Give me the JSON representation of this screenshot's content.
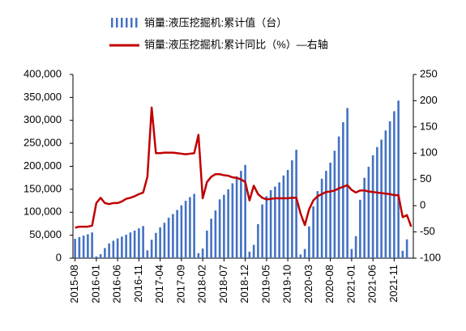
{
  "chart_data": {
    "type": "bar_line",
    "categories": [
      "2015-08",
      null,
      null,
      null,
      null,
      "2016-01",
      null,
      null,
      null,
      null,
      "2016-06",
      null,
      null,
      null,
      null,
      "2016-11",
      null,
      null,
      null,
      null,
      "2017-04",
      null,
      null,
      null,
      null,
      "2017-09",
      null,
      null,
      null,
      null,
      "2018-02",
      null,
      null,
      null,
      null,
      "2018-07",
      null,
      null,
      null,
      null,
      "2018-12",
      null,
      null,
      null,
      null,
      "2019-05",
      null,
      null,
      null,
      null,
      "2019-10",
      null,
      null,
      null,
      null,
      "2020-03",
      null,
      null,
      null,
      null,
      "2020-08",
      null,
      null,
      null,
      null,
      "2021-01",
      null,
      null,
      null,
      null,
      "2021-06",
      null,
      null,
      null,
      null,
      "2021-11",
      null,
      null,
      null,
      null
    ],
    "series": [
      {
        "name": "销量:液压挖掘机:累计值（台）",
        "type": "bar",
        "color": "#4472c4",
        "values": [
          42000,
          46000,
          49000,
          52000,
          56000,
          3700,
          8600,
          22000,
          32000,
          38000,
          43000,
          47000,
          51000,
          56000,
          60000,
          65000,
          70000,
          17000,
          40000,
          55000,
          67000,
          77000,
          88000,
          96000,
          105000,
          115000,
          125000,
          133000,
          140000,
          11000,
          21000,
          60000,
          86000,
          104000,
          128000,
          138000,
          150000,
          163000,
          178000,
          190000,
          203000,
          14000,
          29000,
          74000,
          117000,
          135000,
          148000,
          156000,
          165000,
          180000,
          192000,
          213000,
          236000,
          8000,
          20000,
          69000,
          113000,
          146000,
          173000,
          190000,
          208000,
          234000,
          265000,
          296000,
          327000,
          20000,
          48000,
          127000,
          175000,
          199000,
          224000,
          242000,
          258000,
          278000,
          298000,
          320000,
          343000,
          16000,
          41000,
          null
        ]
      },
      {
        "name": "销量:液压挖掘机:累计同比（%）—右轴",
        "type": "line",
        "axis": "y2",
        "color": "#c00000",
        "values": [
          -42,
          -40,
          -40,
          -40,
          -38,
          5,
          15,
          5,
          3,
          5,
          5,
          8,
          13,
          15,
          18,
          22,
          25,
          55,
          187,
          100,
          100,
          101,
          101,
          101,
          100,
          99,
          98,
          99,
          100,
          135,
          14,
          45,
          55,
          60,
          60,
          58,
          57,
          54,
          53,
          50,
          45,
          10,
          38,
          22,
          15,
          12,
          13,
          14,
          14,
          14,
          14,
          15,
          15,
          -15,
          -37,
          -7,
          10,
          18,
          22,
          26,
          27,
          29,
          33,
          36,
          39,
          30,
          25,
          29,
          29,
          27,
          26,
          25,
          24,
          23,
          22,
          20,
          20,
          -22,
          -18,
          -40
        ]
      }
    ],
    "ylim": [
      0,
      400000
    ],
    "yticks": [
      0,
      {
        "value": 50000,
        "label": "50,000"
      },
      {
        "value": 100000,
        "label": "100,000"
      },
      {
        "value": 150000,
        "label": "150,000"
      },
      {
        "value": 200000,
        "label": "200,000"
      },
      {
        "value": 250000,
        "label": "250,000"
      },
      {
        "value": 300000,
        "label": "300,000"
      },
      {
        "value": 350000,
        "label": "350,000"
      },
      {
        "value": 400000,
        "label": "400,000"
      }
    ],
    "y2lim": [
      -100,
      250
    ],
    "y2ticks": [
      -100,
      -50,
      0,
      50,
      100,
      150,
      200,
      250
    ],
    "legend": "top",
    "grid": false
  }
}
